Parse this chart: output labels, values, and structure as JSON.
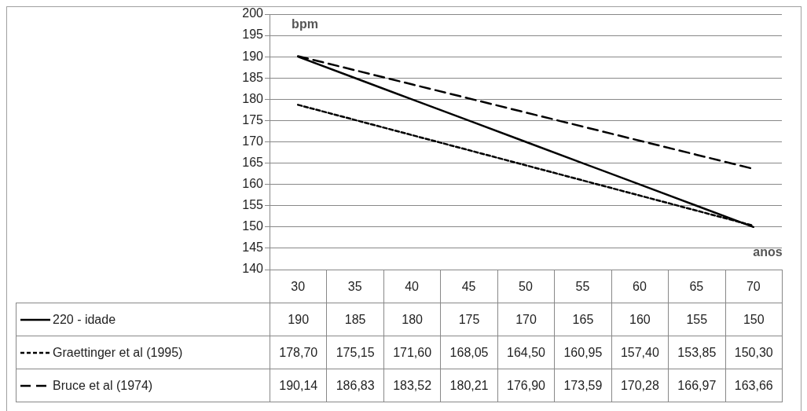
{
  "chart_data": {
    "type": "line",
    "xlabel": "anos",
    "ylabel": "bpm",
    "categories": [
      "30",
      "35",
      "40",
      "45",
      "50",
      "55",
      "60",
      "65",
      "70"
    ],
    "ylim": [
      140,
      200
    ],
    "yticks": [
      140,
      145,
      150,
      155,
      160,
      165,
      170,
      175,
      180,
      185,
      190,
      195,
      200
    ],
    "grid": "y",
    "legend": "bottom",
    "marker": "none",
    "series": [
      {
        "name": "220 - idade",
        "color": "#000000",
        "line_style": "solid",
        "values": [
          190,
          185,
          180,
          175,
          170,
          165,
          160,
          155,
          150
        ],
        "value_labels": [
          "190",
          "185",
          "180",
          "175",
          "170",
          "165",
          "160",
          "155",
          "150"
        ]
      },
      {
        "name": "Graettinger et al (1995)",
        "color": "#000000",
        "line_style": "dotted",
        "values": [
          178.7,
          175.15,
          171.6,
          168.05,
          164.5,
          160.95,
          157.4,
          153.85,
          150.3
        ],
        "value_labels": [
          "178,70",
          "175,15",
          "171,60",
          "168,05",
          "164,50",
          "160,95",
          "157,40",
          "153,85",
          "150,30"
        ]
      },
      {
        "name": "Bruce et al (1974)",
        "color": "#000000",
        "line_style": "dashed",
        "values": [
          190.14,
          186.83,
          183.52,
          180.21,
          176.9,
          173.59,
          170.28,
          166.97,
          163.66
        ],
        "value_labels": [
          "190,14",
          "186,83",
          "183,52",
          "180,21",
          "176,90",
          "173,59",
          "170,28",
          "166,97",
          "163,66"
        ]
      }
    ]
  }
}
